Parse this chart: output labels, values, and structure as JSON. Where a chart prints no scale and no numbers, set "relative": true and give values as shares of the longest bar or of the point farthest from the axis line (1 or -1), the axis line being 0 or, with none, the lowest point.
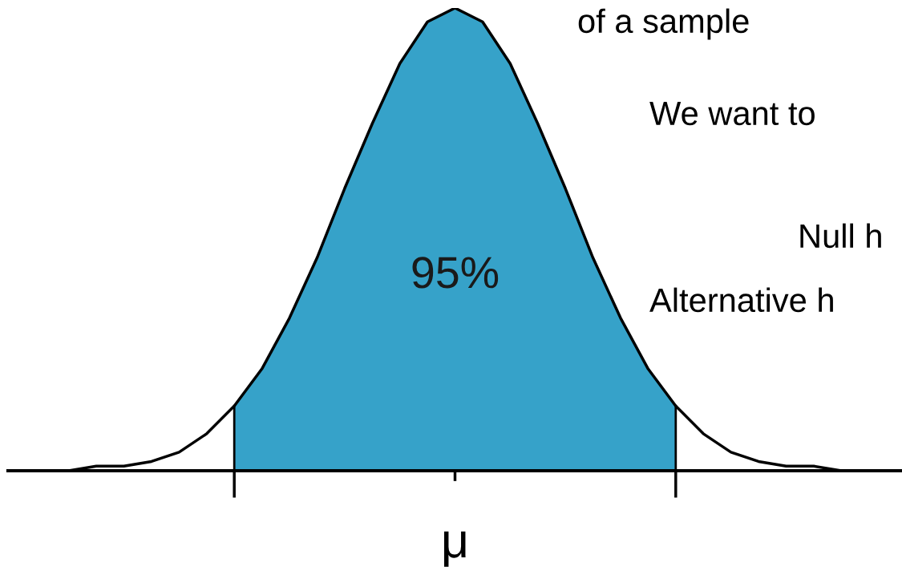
{
  "chart_data": {
    "type": "area",
    "relative": true,
    "categories": [
      null,
      null,
      null,
      null,
      null,
      null,
      null,
      null,
      null,
      null,
      null,
      null,
      null,
      null,
      null,
      null,
      null,
      null,
      null,
      null,
      null,
      null,
      null,
      null,
      null,
      null,
      null,
      null,
      null,
      null,
      null,
      null,
      null
    ],
    "series": [
      {
        "type": "line",
        "color": "#000000",
        "values": [
          0.0,
          0.0,
          0.0,
          0.01,
          0.01,
          0.02,
          0.04,
          0.08,
          0.14,
          0.22,
          0.33,
          0.46,
          0.61,
          0.75,
          0.88,
          0.97,
          1.0,
          0.97,
          0.88,
          0.75,
          0.61,
          0.46,
          0.33,
          0.22,
          0.14,
          0.08,
          0.04,
          0.02,
          0.01,
          0.01,
          0.0,
          0.0,
          0.0
        ]
      },
      {
        "color": "#36a2c9",
        "values": [
          null,
          null,
          null,
          null,
          null,
          null,
          null,
          null,
          0.14,
          0.22,
          0.33,
          0.46,
          0.61,
          0.75,
          0.88,
          0.97,
          1.0,
          0.97,
          0.88,
          0.75,
          0.61,
          0.46,
          0.33,
          0.22,
          0.14,
          null,
          null,
          null,
          null,
          null,
          null,
          null,
          null
        ]
      }
    ],
    "annotations": [
      "95%",
      "μ",
      "of a sample",
      "We want to",
      "Null h",
      "Alternative h"
    ]
  }
}
